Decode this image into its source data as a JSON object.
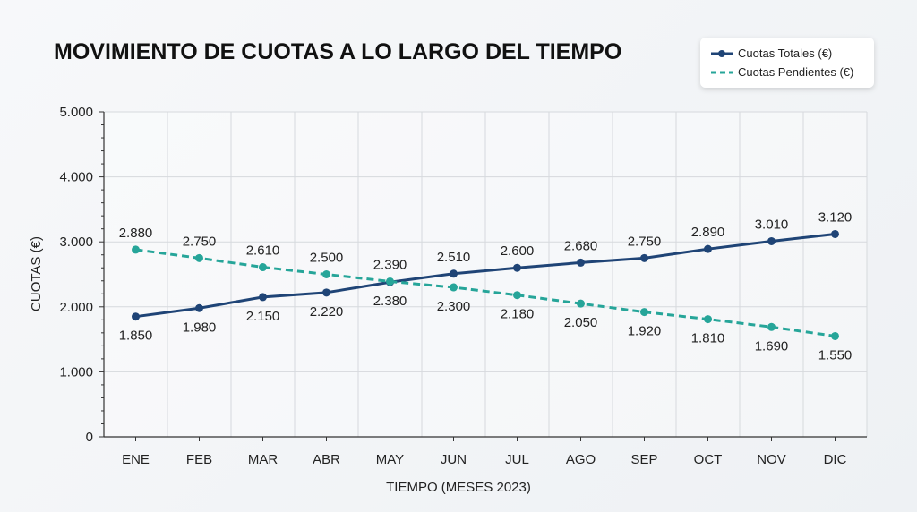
{
  "chart_data": {
    "type": "line",
    "title": "MOVIMIENTO DE CUOTAS A LO LARGO DEL TIEMPO",
    "xlabel": "TIEMPO (MESES 2023)",
    "ylabel": "CUOTAS (€)",
    "categories": [
      "ENE",
      "FEB",
      "MAR",
      "ABR",
      "MAY",
      "JUN",
      "JUL",
      "AGO",
      "SEP",
      "OCT",
      "NOV",
      "DIC"
    ],
    "ylim": [
      0,
      5000
    ],
    "yticks": [
      0,
      1000,
      2000,
      3000,
      4000,
      5000
    ],
    "ytick_labels": [
      "0",
      "1.000",
      "2.000",
      "3.000",
      "4.000",
      "5.000"
    ],
    "grid": true,
    "legend_position": "top-right",
    "series": [
      {
        "name": "Cuotas Totales (€)",
        "color": "#1f4476",
        "style": "solid",
        "values": [
          1850,
          1980,
          2150,
          2220,
          2380,
          2510,
          2600,
          2680,
          2750,
          2890,
          3010,
          3120
        ],
        "labels": [
          "1.850",
          "1.980",
          "2.150",
          "2.220",
          "2.380",
          "2.510",
          "2.600",
          "2.680",
          "2.750",
          "2.890",
          "3.010",
          "3.120"
        ],
        "label_pos": [
          "below",
          "below",
          "below",
          "below",
          "below",
          "above",
          "above",
          "above",
          "above",
          "above",
          "above",
          "above"
        ]
      },
      {
        "name": "Cuotas Pendientes (€)",
        "color": "#26a599",
        "style": "dashed",
        "values": [
          2880,
          2750,
          2610,
          2500,
          2390,
          2300,
          2180,
          2050,
          1920,
          1810,
          1690,
          1550
        ],
        "labels": [
          "2.880",
          "2.750",
          "2.610",
          "2.500",
          "2.390",
          "2.300",
          "2.180",
          "2.050",
          "1.920",
          "1.810",
          "1.690",
          "1.550"
        ],
        "label_pos": [
          "above",
          "above",
          "above",
          "above",
          "above",
          "below",
          "below",
          "below",
          "below",
          "below",
          "below",
          "below"
        ]
      }
    ]
  }
}
